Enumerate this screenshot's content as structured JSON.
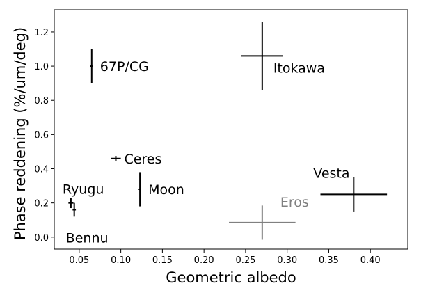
{
  "chart_data": {
    "type": "scatter",
    "title": "",
    "xlabel": "Geometric albedo",
    "ylabel": "Phase reddening (%/um/deg)",
    "xlim": [
      0.02,
      0.445
    ],
    "ylim": [
      -0.07,
      1.33
    ],
    "x_ticks": [
      0.05,
      0.1,
      0.15,
      0.2,
      0.25,
      0.3,
      0.35,
      0.4
    ],
    "x_tick_labels": [
      "0.05",
      "0.10",
      "0.15",
      "0.20",
      "0.25",
      "0.30",
      "0.35",
      "0.40"
    ],
    "y_ticks": [
      0.0,
      0.2,
      0.4,
      0.6,
      0.8,
      1.0,
      1.2
    ],
    "y_tick_labels": [
      "0.0",
      "0.2",
      "0.4",
      "0.6",
      "0.8",
      "1.0",
      "1.2"
    ],
    "grid": false,
    "legend": "none",
    "points": [
      {
        "label": "67P/CG",
        "x": 0.065,
        "y": 1.0,
        "xerr": 0.0,
        "yerr": 0.1,
        "color": "#000000",
        "label_anchor": "right"
      },
      {
        "label": "Itokawa",
        "x": 0.27,
        "y": 1.06,
        "xerr": 0.025,
        "yerr": 0.2,
        "color": "#000000",
        "label_anchor": "below-right"
      },
      {
        "label": "Ceres",
        "x": 0.094,
        "y": 0.46,
        "xerr": 0.006,
        "yerr": 0.015,
        "color": "#000000",
        "label_anchor": "right"
      },
      {
        "label": "Moon",
        "x": 0.123,
        "y": 0.28,
        "xerr": 0.0,
        "yerr": 0.1,
        "color": "#000000",
        "label_anchor": "right"
      },
      {
        "label": "Ryugu",
        "x": 0.04,
        "y": 0.2,
        "xerr": 0.003,
        "yerr": 0.03,
        "color": "#000000",
        "label_anchor": "above"
      },
      {
        "label": "Bennu",
        "x": 0.044,
        "y": 0.16,
        "xerr": 0.002,
        "yerr": 0.04,
        "color": "#000000",
        "label_anchor": "below"
      },
      {
        "label": "Vesta",
        "x": 0.38,
        "y": 0.25,
        "xerr": 0.04,
        "yerr": 0.1,
        "color": "#000000",
        "label_anchor": "above-left"
      },
      {
        "label": "Eros",
        "x": 0.27,
        "y": 0.085,
        "xerr": 0.04,
        "yerr": 0.1,
        "color": "#808080",
        "label_anchor": "above-right"
      }
    ]
  }
}
